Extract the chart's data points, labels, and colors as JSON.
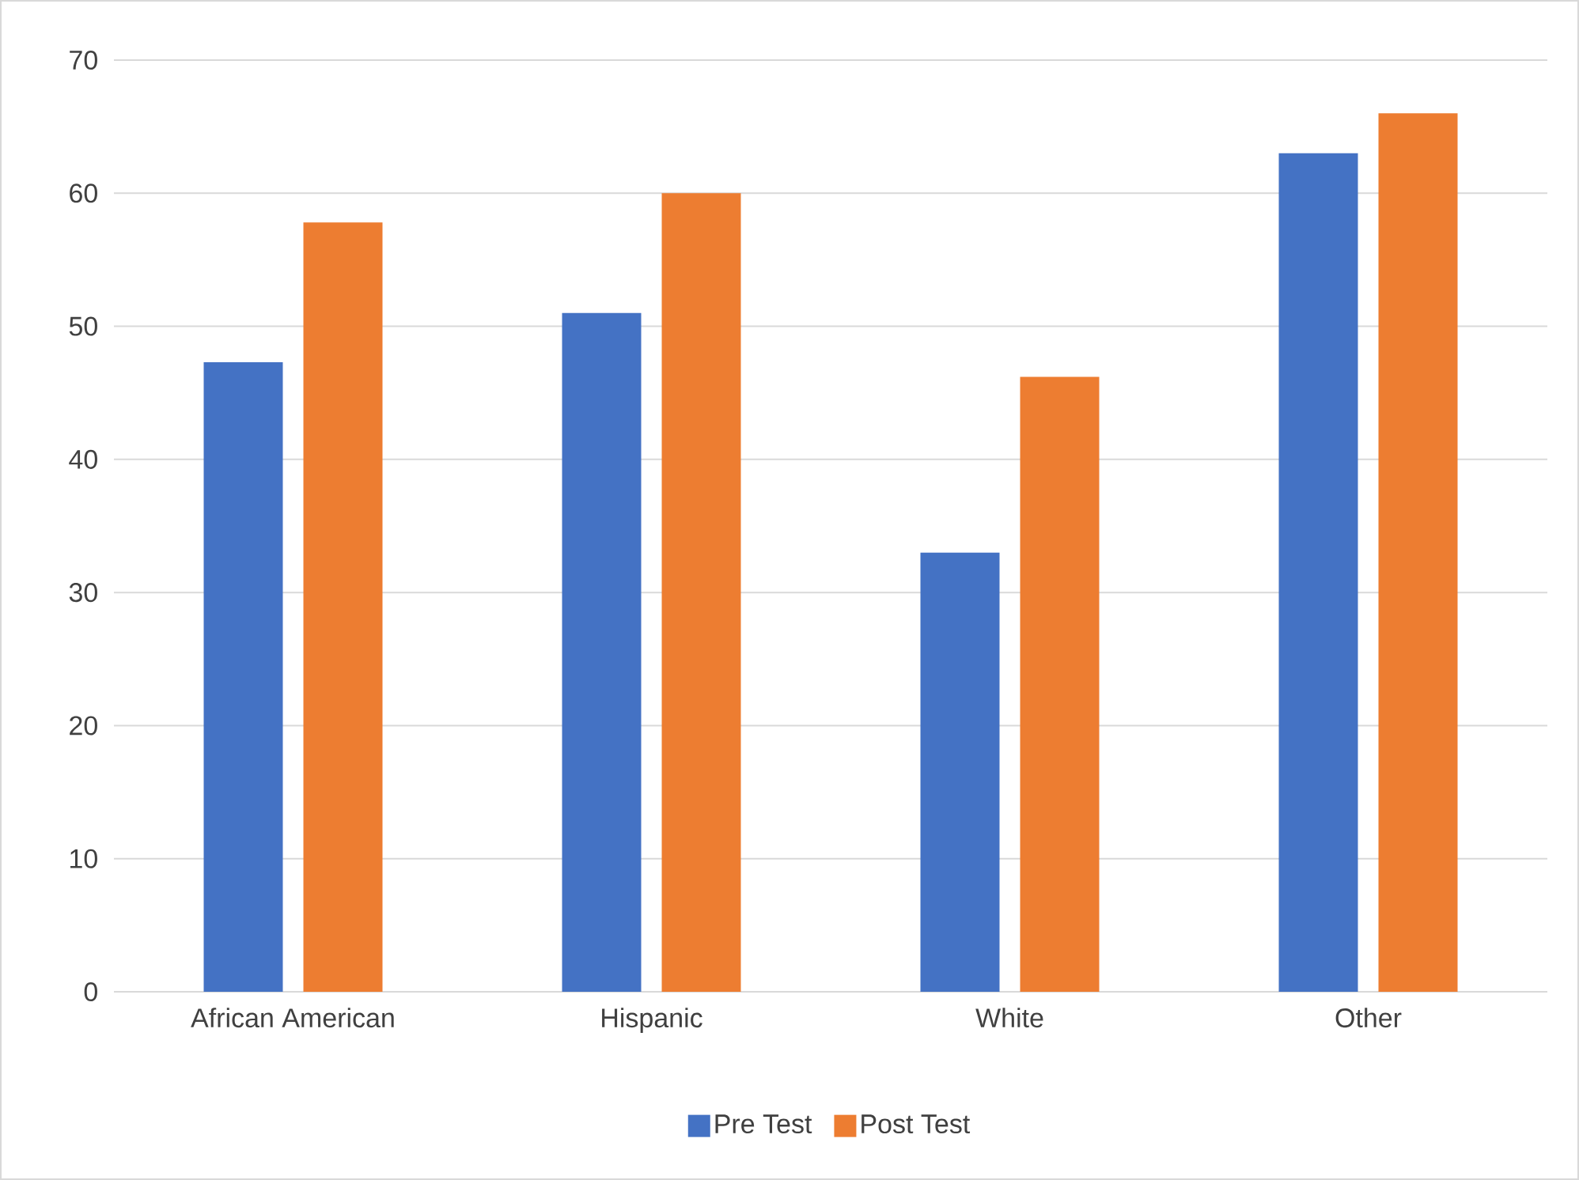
{
  "chart_data": {
    "type": "bar",
    "categories": [
      "African American",
      "Hispanic",
      "White",
      "Other"
    ],
    "series": [
      {
        "name": "Pre Test",
        "color": "#4472c4",
        "values": [
          47.3,
          51,
          33,
          63
        ]
      },
      {
        "name": "Post Test",
        "color": "#ed7d31",
        "values": [
          57.8,
          60,
          46.2,
          66
        ]
      }
    ],
    "ylim": [
      0,
      70
    ],
    "yticks": [
      0,
      10,
      20,
      30,
      40,
      50,
      60,
      70
    ],
    "grid": "y",
    "legend": "bottom"
  }
}
